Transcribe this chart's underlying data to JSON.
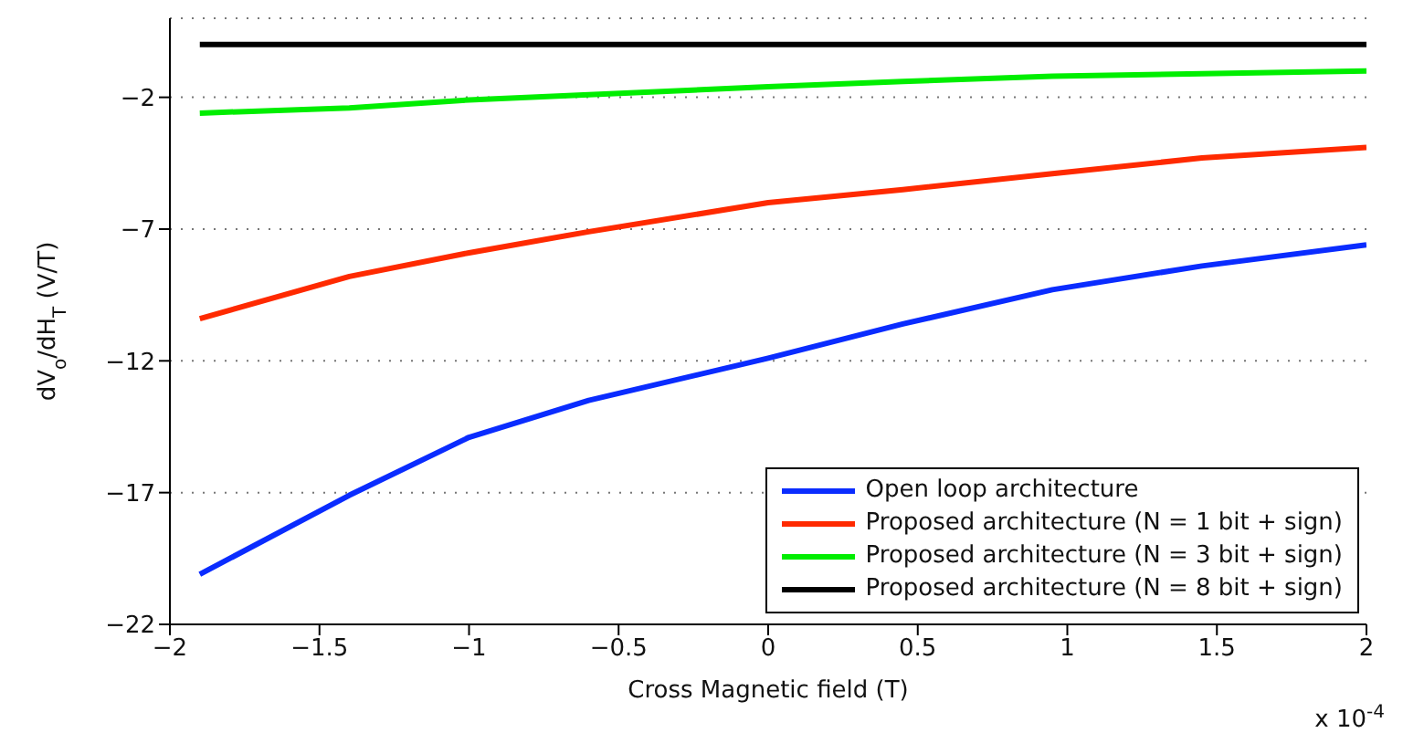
{
  "chart_data": {
    "type": "line",
    "xlabel": "Cross Magnetic field (T)",
    "ylabel": "dV$_{o}$/dH$_{T}$ (V/T)",
    "x": [
      -1.9,
      -1.4,
      -1,
      -0.6,
      0,
      0.45,
      0.95,
      1.45,
      2
    ],
    "series": [
      {
        "name": "Open loop architecture",
        "color": "#0a2cff",
        "values": [
          -20.1,
          -17.1,
          -14.9,
          -13.5,
          -11.9,
          -10.6,
          -9.3,
          -8.4,
          -7.6
        ]
      },
      {
        "name": "Proposed architecture (N = 1 bit + sign)",
        "color": "#ff2a00",
        "values": [
          -10.4,
          -8.8,
          -7.9,
          -7.1,
          -6.0,
          -5.5,
          -4.9,
          -4.3,
          -3.9
        ]
      },
      {
        "name": "Proposed architecture (N = 3 bit + sign)",
        "color": "#00ee00",
        "values": [
          -2.6,
          -2.4,
          -2.1,
          -1.9,
          -1.6,
          -1.4,
          -1.2,
          -1.1,
          -1.0
        ]
      },
      {
        "name": "Proposed architecture (N = 8 bit + sign)",
        "color": "#000000",
        "values": [
          0,
          0,
          0,
          0,
          0,
          0,
          0,
          0,
          0
        ]
      }
    ],
    "xlim": [
      -2,
      2
    ],
    "xticks": [
      {
        "value": -2,
        "label": "−2"
      },
      {
        "value": -1.5,
        "label": "−1.5"
      },
      {
        "value": -1,
        "label": "−1"
      },
      {
        "value": -0.5,
        "label": "−0.5"
      },
      0,
      0.5,
      1,
      1.5,
      2
    ],
    "ylim": [
      -22,
      1
    ],
    "yticks": [
      {
        "value": -22,
        "label": "−22"
      },
      {
        "value": -17,
        "label": "−17"
      },
      {
        "value": -12,
        "label": "−12"
      },
      {
        "value": -7,
        "label": "−7"
      },
      {
        "value": -2,
        "label": "−2"
      }
    ],
    "annotations": [
      "x 10$^{-4}$"
    ],
    "grid": "y",
    "legend": "bottom right",
    "marker": "none",
    "line_style": "solid"
  }
}
